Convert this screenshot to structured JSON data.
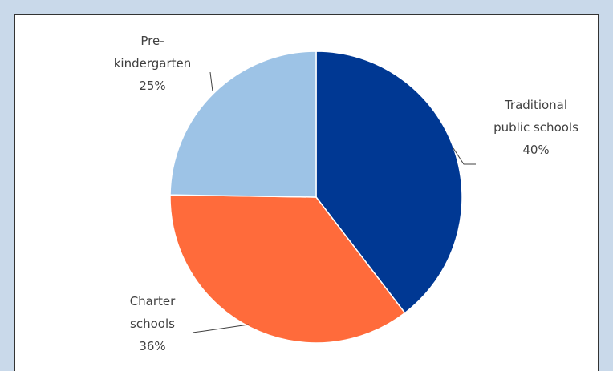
{
  "chart_data": {
    "type": "pie",
    "categories": [
      "Traditional public schools",
      "Charter schools",
      "Pre-kindergarten"
    ],
    "values": [
      40,
      36,
      25
    ],
    "value_labels": [
      "40%",
      "36%",
      "25%"
    ],
    "colors": [
      "#003893",
      "#ff6b3b",
      "#9dc3e6"
    ]
  }
}
